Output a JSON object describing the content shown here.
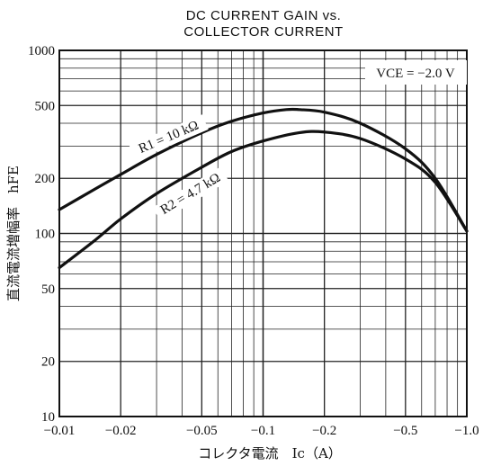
{
  "chart_data": {
    "type": "line",
    "title": "DC CURRENT GAIN vs.\nCOLLECTOR CURRENT",
    "xlabel": "コレクタ電流　I_C（A）",
    "ylabel": "直流電流増幅率　h_FE",
    "xscale": "log",
    "yscale": "log",
    "xlim": [
      -0.01,
      -1.0
    ],
    "ylim": [
      10,
      1000
    ],
    "x_ticks": [
      -0.01,
      -0.02,
      -0.05,
      -0.1,
      -0.2,
      -0.5,
      -1.0
    ],
    "x_tick_labels": [
      "−0.01",
      "−0.02",
      "−0.05",
      "−0.1",
      "−0.2",
      "−0.5",
      "−1.0"
    ],
    "y_ticks": [
      10,
      20,
      50,
      100,
      200,
      500,
      1000
    ],
    "y_tick_labels": [
      "10",
      "20",
      "50",
      "100",
      "200",
      "500",
      "1000"
    ],
    "grid": true,
    "annotation": "V_CE = −2.0 V",
    "series": [
      {
        "name": "R1 = 10 kΩ",
        "x": [
          -0.01,
          -0.015,
          -0.02,
          -0.03,
          -0.05,
          -0.07,
          -0.1,
          -0.13,
          -0.15,
          -0.2,
          -0.3,
          -0.5,
          -0.7,
          -1.0
        ],
        "y": [
          135,
          175,
          210,
          270,
          355,
          410,
          455,
          475,
          475,
          460,
          400,
          290,
          200,
          103
        ]
      },
      {
        "name": "R2 = 4.7 kΩ",
        "x": [
          -0.01,
          -0.015,
          -0.02,
          -0.03,
          -0.05,
          -0.07,
          -0.1,
          -0.15,
          -0.2,
          -0.3,
          -0.5,
          -0.7,
          -1.0
        ],
        "y": [
          65,
          92,
          120,
          165,
          230,
          280,
          320,
          355,
          358,
          330,
          255,
          190,
          103
        ]
      }
    ]
  }
}
